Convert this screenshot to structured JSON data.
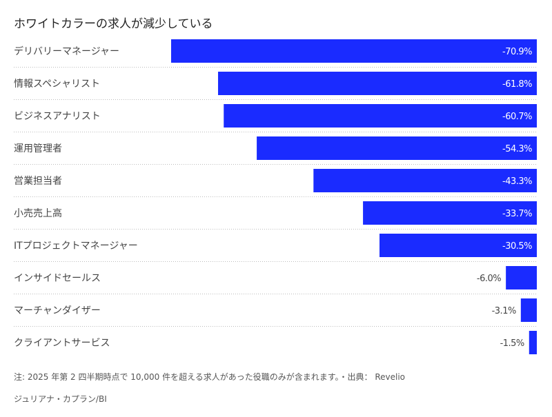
{
  "chart_data": {
    "type": "bar",
    "orientation": "horizontal",
    "title": "ホワイトカラーの求人が減少している",
    "categories": [
      "デリバリーマネージャー",
      "情報スペシャリスト",
      "ビジネスアナリスト",
      "運用管理者",
      "営業担当者",
      "小売売上高",
      "ITプロジェクトマネージャー",
      "インサイドセールス",
      "マーチャンダイザー",
      "クライアントサービス"
    ],
    "values": [
      -70.9,
      -61.8,
      -60.7,
      -54.3,
      -43.3,
      -33.7,
      -30.5,
      -6.0,
      -3.1,
      -1.5
    ],
    "data_labels": [
      "-70.9%",
      "-61.8%",
      "-60.7%",
      "-54.3%",
      "-43.3%",
      "-33.7%",
      "-30.5%",
      "-6.0%",
      "-3.1%",
      "-1.5%"
    ],
    "bar_color": "#1a2bff",
    "grid": false
  },
  "footer": {
    "note": "注: 2025 年第 2 四半期時点で 10,000 件を超える求人があった役職のみが含まれます。・出典： Revelio",
    "credit": "ジュリアナ・カプラン/BI"
  }
}
